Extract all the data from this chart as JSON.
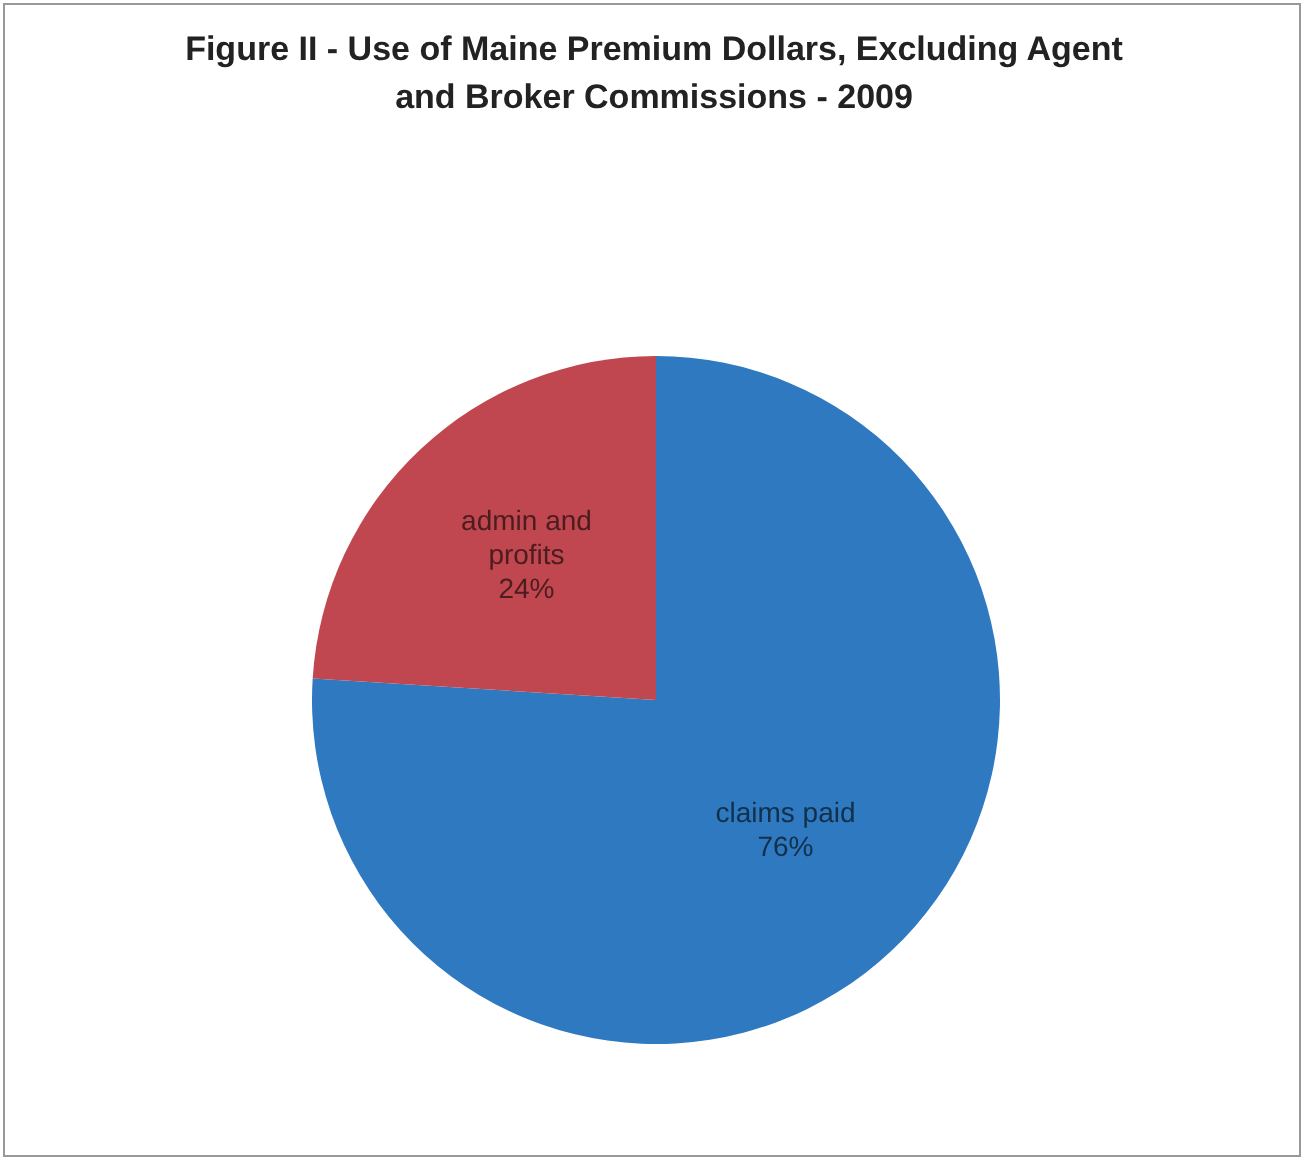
{
  "chart_data": {
    "type": "pie",
    "title": "Figure II - Use of Maine Premium Dollars, Excluding Agent and Broker Commissions - 2009",
    "categories": [
      "claims paid",
      "admin and profits"
    ],
    "values": [
      76,
      24
    ],
    "colors": [
      "#2e79bf",
      "#c0474f"
    ],
    "value_labels": [
      "76%",
      "24%"
    ],
    "legend": false
  }
}
